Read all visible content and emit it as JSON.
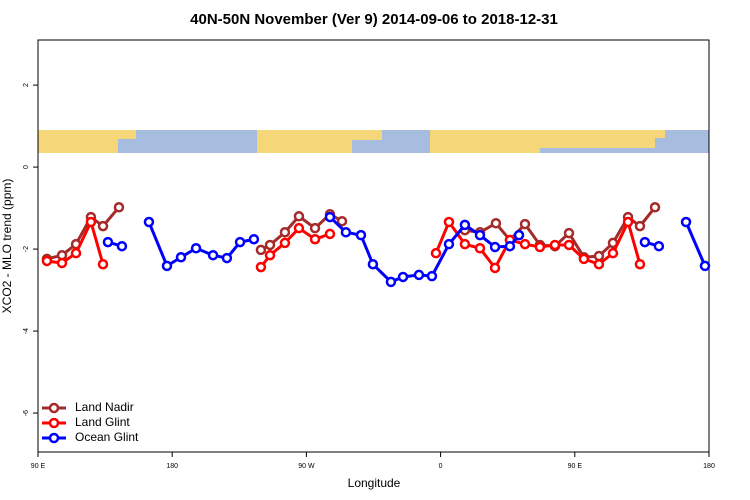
{
  "chart_data": {
    "type": "line",
    "title": "40N-50N November (Ver 9)   2014-09-06 to 2018-12-31",
    "x_label": "Longitude",
    "y_label": "XCO2 - MLO trend (ppm)",
    "xlim": [
      90,
      540
    ],
    "ylim": [
      -6.95,
      3.1
    ],
    "xticks": [
      {
        "value": 90,
        "label": "90 E"
      },
      180,
      {
        "value": 270,
        "label": "90 W"
      },
      {
        "value": 360,
        "label": "0"
      },
      {
        "value": 450,
        "label": "90 E"
      },
      {
        "value": 540,
        "label": "180"
      }
    ],
    "yticks": [
      -6,
      -4,
      -2,
      0,
      2
    ],
    "legend": "bottom-left",
    "series": [
      {
        "name": "Land Nadir",
        "color": "#a52a2a",
        "x": [
          96,
          106.1,
          115.5,
          125.5,
          133.6,
          144.3,
          null,
          239.5,
          245.6,
          255.6,
          265,
          275.8,
          285.8,
          293.9,
          null,
          376.3,
          386.4,
          397.1,
          406.5,
          416.6,
          426.6,
          436.7,
          446.1,
          456.1,
          466.2,
          475.6,
          485.7,
          493.7,
          503.8
        ],
        "values": [
          -2.24,
          -2.15,
          -1.88,
          -1.22,
          -1.44,
          -0.98,
          null,
          -2.02,
          -1.9,
          -1.59,
          -1.2,
          -1.49,
          -1.15,
          -1.32,
          null,
          -1.54,
          -1.59,
          -1.37,
          -1.78,
          -1.39,
          -1.9,
          -1.93,
          -1.61,
          -2.2,
          -2.17,
          -1.85,
          -1.22,
          -1.44,
          -0.98
        ]
      },
      {
        "name": "Land Glint",
        "color": "#ff0000",
        "x": [
          96,
          106.1,
          115.5,
          125.5,
          133.6,
          null,
          239.5,
          245.6,
          255.6,
          265,
          275.8,
          285.8,
          null,
          356.9,
          365.6,
          376.3,
          386.4,
          396.5,
          406.5,
          416.6,
          426.6,
          436.7,
          446.1,
          456.1,
          466.2,
          475.6,
          485.7,
          493.7
        ],
        "values": [
          -2.29,
          -2.34,
          -2.1,
          -1.34,
          -2.37,
          null,
          -2.44,
          -2.15,
          -1.85,
          -1.49,
          -1.76,
          -1.63,
          null,
          -2.1,
          -1.34,
          -1.88,
          -1.98,
          -2.46,
          -1.78,
          -1.88,
          -1.95,
          -1.9,
          -1.9,
          -2.24,
          -2.37,
          -2.1,
          -1.34,
          -2.37
        ]
      },
      {
        "name": "Ocean Glint",
        "color": "#0000ff",
        "x": [
          136.9,
          146.3,
          null,
          164.4,
          176.5,
          185.9,
          196,
          207.4,
          216.7,
          225.5,
          234.8,
          null,
          285.8,
          296.5,
          306.6,
          314.6,
          326.7,
          334.8,
          345.5,
          354.2,
          365.6,
          376.3,
          386.4,
          396.5,
          406.5,
          412.6,
          null,
          497,
          506.4,
          null,
          524.6,
          537.3
        ],
        "values": [
          -1.83,
          -1.93,
          null,
          -1.34,
          -2.41,
          -2.2,
          -1.98,
          -2.15,
          -2.22,
          -1.83,
          -1.76,
          null,
          -1.22,
          -1.59,
          -1.66,
          -2.37,
          -2.8,
          -2.68,
          -2.63,
          -2.66,
          -1.88,
          -1.41,
          -1.66,
          -1.95,
          -1.93,
          -1.66,
          null,
          -1.83,
          -1.93,
          null,
          -1.34,
          -2.41
        ]
      }
    ]
  }
}
